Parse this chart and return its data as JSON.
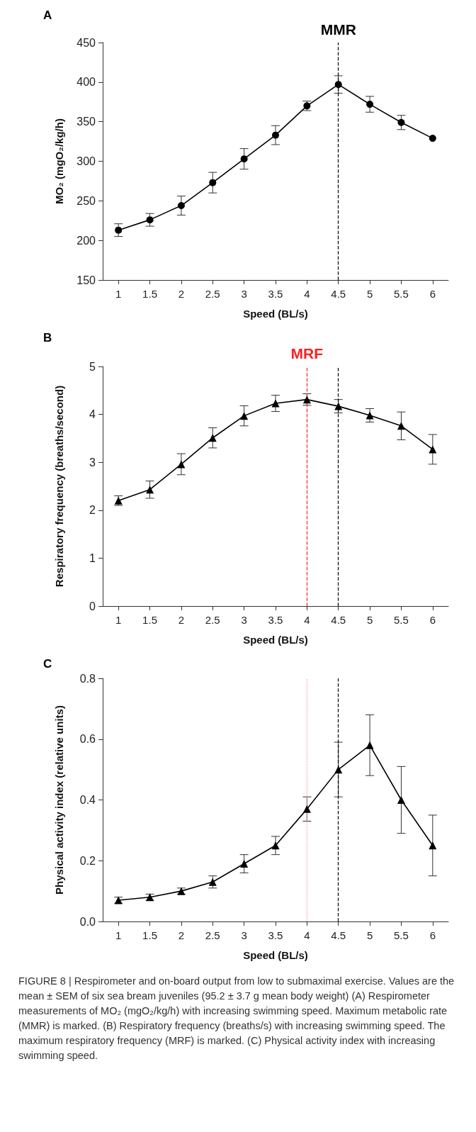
{
  "chart_data": [
    {
      "type": "line",
      "title": "A",
      "xlabel": "Speed (BL/s)",
      "ylabel": "MO₂ (mgO₂/kg/h)",
      "categories": [
        "1",
        "1.5",
        "2",
        "2.5",
        "3",
        "3.5",
        "4",
        "4.5",
        "5",
        "5.5",
        "6"
      ],
      "series": [
        {
          "color": "#000000",
          "values": [
            213,
            226,
            244,
            273,
            303,
            333,
            370,
            397,
            372,
            349,
            329
          ],
          "errors": [
            8,
            8,
            12,
            13,
            13,
            12,
            6,
            11,
            10,
            9,
            null
          ]
        }
      ],
      "ylim": [
        150,
        450
      ],
      "yticks": [
        150,
        200,
        250,
        300,
        350,
        400,
        450
      ],
      "grid": false,
      "marker": "circle",
      "line_style": "solid",
      "ref_lines": [
        {
          "axis": "x",
          "value": "4.5",
          "label": "MMR",
          "color": "#000000",
          "line_style": "dashed"
        }
      ]
    },
    {
      "type": "line",
      "title": "B",
      "xlabel": "Speed (BL/s)",
      "ylabel": "Respiratory frequency (breaths/second)",
      "categories": [
        "1",
        "1.5",
        "2",
        "2.5",
        "3",
        "3.5",
        "4",
        "4.5",
        "5",
        "5.5",
        "6"
      ],
      "series": [
        {
          "color": "#000000",
          "values": [
            2.2,
            2.43,
            2.96,
            3.51,
            3.97,
            4.23,
            4.31,
            4.17,
            3.98,
            3.76,
            3.27
          ],
          "errors": [
            0.1,
            0.18,
            0.22,
            0.21,
            0.21,
            0.17,
            0.12,
            0.14,
            0.14,
            0.29,
            0.31
          ]
        }
      ],
      "ylim": [
        0,
        5
      ],
      "yticks": [
        0,
        1,
        2,
        3,
        4,
        5
      ],
      "grid": false,
      "marker": "triangle",
      "line_style": "solid",
      "ref_lines": [
        {
          "axis": "x",
          "value": "4",
          "label": "MRF",
          "color": "#ff2020",
          "line_style": "dashed"
        },
        {
          "axis": "x",
          "value": "4.5",
          "color": "#000000",
          "line_style": "dashed"
        }
      ]
    },
    {
      "type": "line",
      "title": "C",
      "xlabel": "Speed (BL/s)",
      "ylabel": "Physical activity index (relative units)",
      "categories": [
        "1",
        "1.5",
        "2",
        "2.5",
        "3",
        "3.5",
        "4",
        "4.5",
        "5",
        "5.5",
        "6"
      ],
      "series": [
        {
          "color": "#000000",
          "values": [
            0.07,
            0.08,
            0.1,
            0.13,
            0.19,
            0.25,
            0.37,
            0.5,
            0.58,
            0.4,
            0.25
          ],
          "errors": [
            0.01,
            0.01,
            0.01,
            0.02,
            0.03,
            0.03,
            0.04,
            0.09,
            0.1,
            0.11,
            0.1
          ]
        }
      ],
      "ylim": [
        0,
        0.8
      ],
      "yticks": [
        {
          "value": 0,
          "label": "0.0"
        },
        0.2,
        0.4,
        0.6,
        0.8
      ],
      "grid": false,
      "marker": "triangle",
      "line_style": "solid",
      "ref_lines": [
        {
          "axis": "x",
          "value": "4",
          "color": "#ff9999",
          "line_style": "dotted"
        },
        {
          "axis": "x",
          "value": "4.5",
          "color": "#000000",
          "line_style": "dashed"
        }
      ],
      "annotations": [
        "FIGURE 8 | Respirometer and on-board output from low to submaximal exercise. Values are the mean ± SEM of six sea bream juveniles (95.2 ± 3.7 g mean body weight) (A) Respirometer measurements of MO₂ (mgO₂/kg/h) with increasing swimming speed. Maximum metabolic rate (MMR) is marked. (B) Respiratory frequency (breaths/s) with increasing swimming speed. The maximum respiratory frequency (MRF) is marked. (C) Physical activity index with increasing swimming speed."
      ]
    }
  ]
}
